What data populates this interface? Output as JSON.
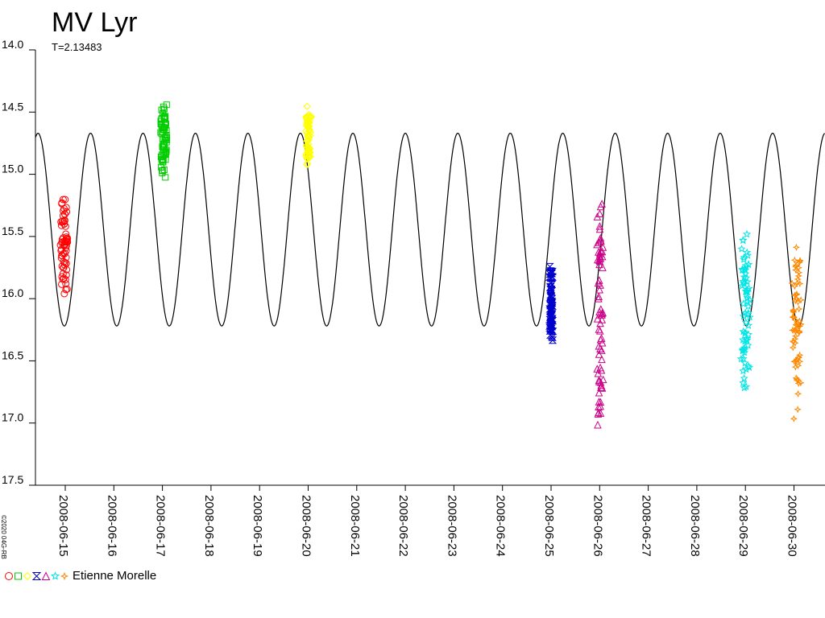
{
  "credit": "©2020 04G-RB",
  "legend": {
    "observer": "Etienne Morelle"
  },
  "chart_data": {
    "type": "scatter",
    "title": "MV Lyr",
    "subtitle": "T=2.13483",
    "ylim": [
      17.5,
      14.0
    ],
    "y_inverted": true,
    "y_ticks": [
      "14.0",
      "14.5",
      "15.0",
      "15.5",
      "16.0",
      "16.5",
      "17.0",
      "17.5"
    ],
    "x_ticks": [
      "2008-06-15",
      "2008-06-16",
      "2008-06-17",
      "2008-06-18",
      "2008-06-19",
      "2008-06-20",
      "2008-06-21",
      "2008-06-22",
      "2008-06-23",
      "2008-06-24",
      "2008-06-25",
      "2008-06-26",
      "2008-06-27",
      "2008-06-28",
      "2008-06-29",
      "2008-06-30"
    ],
    "xlim": [
      "2008-06-14 07:00",
      "2008-07-01 00:00"
    ],
    "model_curve": {
      "period_days": 1.08,
      "peak_date": "2008-06-14 10:34",
      "max_mag": 14.67,
      "min_mag": 16.22
    },
    "grid": false,
    "series": [
      {
        "marker": "circle",
        "color": "#ff0000",
        "date": "2008-06-15",
        "start_hour": -1.9,
        "end_hour": 0.9,
        "mag_range": [
          15.15,
          16.0
        ]
      },
      {
        "marker": "square",
        "color": "#00cc00",
        "date": "2008-06-17",
        "start_hour": -0.6,
        "end_hour": 2.2,
        "mag_range": [
          14.4,
          15.05
        ]
      },
      {
        "marker": "diamond",
        "color": "#ffff00",
        "date": "2008-06-20",
        "start_hour": -0.9,
        "end_hour": 1.0,
        "mag_range": [
          14.45,
          14.95
        ]
      },
      {
        "marker": "hourglass",
        "color": "#0000cc",
        "date": "2008-06-25",
        "start_hour": -0.3,
        "end_hour": 0.4,
        "mag_range": [
          15.7,
          16.4
        ]
      },
      {
        "marker": "triangle",
        "color": "#cc0088",
        "date": "2008-06-26",
        "start_hour": -0.9,
        "end_hour": 1.3,
        "mag_range": [
          15.1,
          17.2
        ]
      },
      {
        "marker": "star",
        "color": "#00e5e5",
        "date": "2008-06-29",
        "start_hour": -1.6,
        "end_hour": 1.8,
        "mag_range": [
          15.45,
          16.8
        ]
      },
      {
        "marker": "sparkle",
        "color": "#ff8800",
        "date": "2008-06-30",
        "start_hour": -0.5,
        "end_hour": 3.2,
        "mag_range": [
          15.45,
          17.0
        ]
      }
    ]
  }
}
